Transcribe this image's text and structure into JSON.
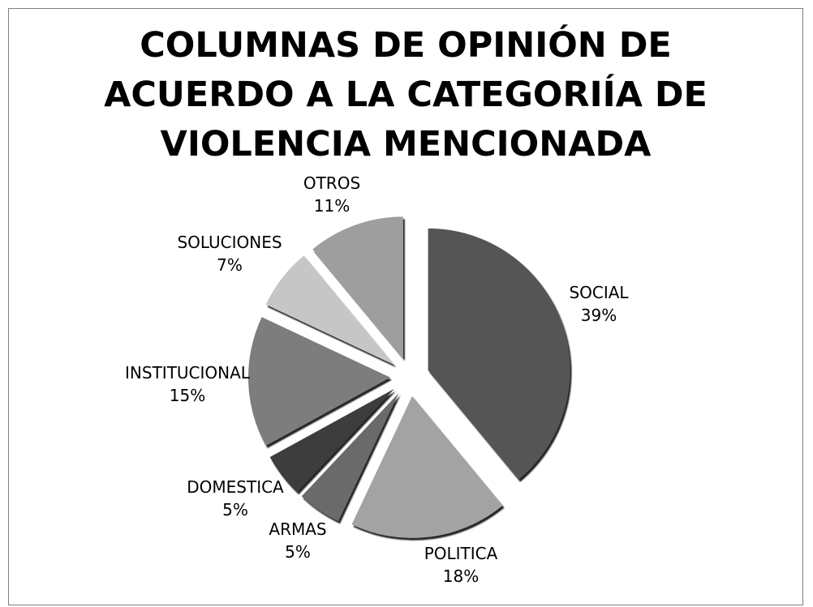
{
  "chart_data": {
    "type": "pie",
    "title": "COLUMNAS DE OPINIÓN DE ACUERDO A LA CATEGORIÍA DE VIOLENCIA MENCIONADA",
    "categories": [
      "SOCIAL",
      "POLITICA",
      "ARMAS",
      "DOMESTICA",
      "INSTITUCIONAL",
      "SOLUCIONES",
      "OTROS"
    ],
    "values": [
      39,
      18,
      5,
      5,
      15,
      7,
      11
    ],
    "value_labels": [
      "39%",
      "18%",
      "5%",
      "5%",
      "15%",
      "7%",
      "11%"
    ],
    "exploded": true,
    "legend": "none",
    "colors": [
      "#545454",
      "#a3a3a3",
      "#6a6a6a",
      "#3c3c3c",
      "#7d7d7d",
      "#c6c6c6",
      "#9e9e9e"
    ]
  }
}
